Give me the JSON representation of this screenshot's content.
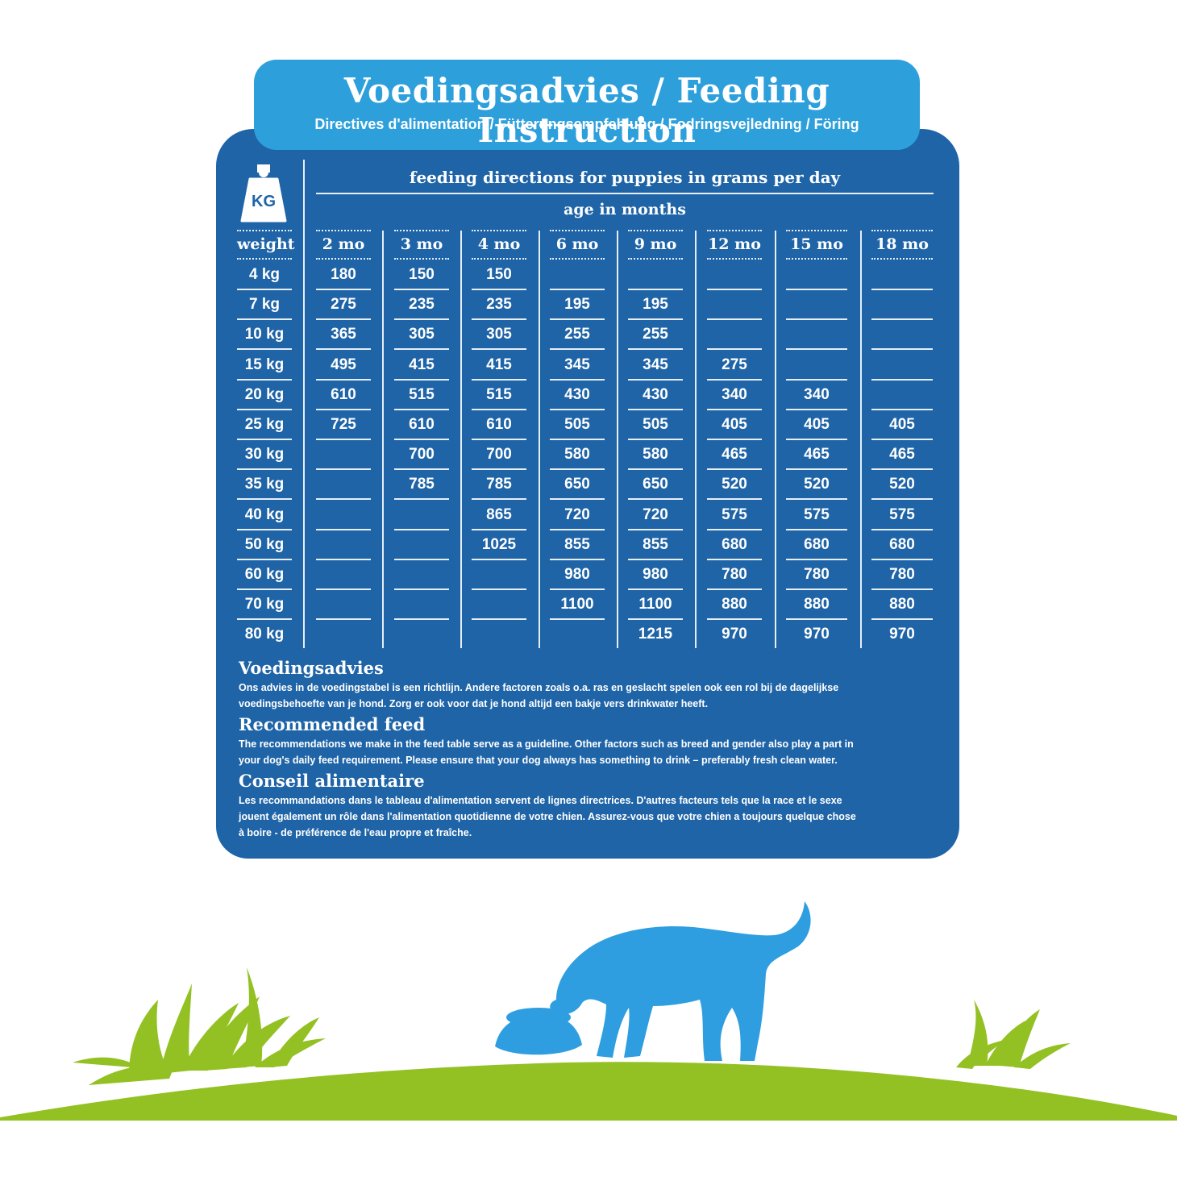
{
  "header": {
    "title": "Voedingsadvies / Feeding Instruction",
    "subtitle": "Directives d'alimentation / Fütterungsempfehlung / Fodringsvejledning / Föring"
  },
  "icon": {
    "name": "weight-kg-icon",
    "label": "KG"
  },
  "table": {
    "caption": "feeding directions for puppies in grams per day",
    "subcaption": "age in months",
    "weight_header": "weight",
    "columns": [
      "2 mo",
      "3 mo",
      "4 mo",
      "6 mo",
      "9 mo",
      "12 mo",
      "15 mo",
      "18 mo"
    ],
    "rows": [
      {
        "weight": "4 kg",
        "values": [
          "180",
          "150",
          "150",
          "",
          "",
          "",
          "",
          ""
        ]
      },
      {
        "weight": "7 kg",
        "values": [
          "275",
          "235",
          "235",
          "195",
          "195",
          "",
          "",
          ""
        ]
      },
      {
        "weight": "10 kg",
        "values": [
          "365",
          "305",
          "305",
          "255",
          "255",
          "",
          "",
          ""
        ]
      },
      {
        "weight": "15 kg",
        "values": [
          "495",
          "415",
          "415",
          "345",
          "345",
          "275",
          "",
          ""
        ]
      },
      {
        "weight": "20 kg",
        "values": [
          "610",
          "515",
          "515",
          "430",
          "430",
          "340",
          "340",
          ""
        ]
      },
      {
        "weight": "25 kg",
        "values": [
          "725",
          "610",
          "610",
          "505",
          "505",
          "405",
          "405",
          "405"
        ]
      },
      {
        "weight": "30 kg",
        "values": [
          "",
          "700",
          "700",
          "580",
          "580",
          "465",
          "465",
          "465"
        ]
      },
      {
        "weight": "35 kg",
        "values": [
          "",
          "785",
          "785",
          "650",
          "650",
          "520",
          "520",
          "520"
        ]
      },
      {
        "weight": "40 kg",
        "values": [
          "",
          "",
          "865",
          "720",
          "720",
          "575",
          "575",
          "575"
        ]
      },
      {
        "weight": "50 kg",
        "values": [
          "",
          "",
          "1025",
          "855",
          "855",
          "680",
          "680",
          "680"
        ]
      },
      {
        "weight": "60 kg",
        "values": [
          "",
          "",
          "",
          "980",
          "980",
          "780",
          "780",
          "780"
        ]
      },
      {
        "weight": "70 kg",
        "values": [
          "",
          "",
          "",
          "1100",
          "1100",
          "880",
          "880",
          "880"
        ]
      },
      {
        "weight": "80 kg",
        "values": [
          "",
          "",
          "",
          "",
          "1215",
          "970",
          "970",
          "970"
        ]
      }
    ]
  },
  "notes": [
    {
      "title": "Voedingsadvies",
      "lines": [
        "Ons advies in de voedingstabel is een richtlijn. Andere factoren zoals o.a. ras en geslacht spelen ook een rol bij de dagelijkse",
        "voedingsbehoefte van je hond. Zorg er ook voor dat je hond altijd een bakje vers drinkwater heeft."
      ]
    },
    {
      "title": "Recommended feed",
      "lines": [
        "The recommendations we make in the feed table serve as a guideline. Other factors such as breed and gender also play a part in",
        "your dog's daily feed requirement. Please ensure that your dog always has something to drink – preferably fresh clean water."
      ]
    },
    {
      "title": "Conseil alimentaire",
      "lines": [
        "Les recommandations dans le tableau d'alimentation servent de lignes directrices. D'autres facteurs tels que la race et le sexe",
        "jouent également un rôle dans l'alimentation quotidienne de votre chien. Assurez-vous que votre chien a toujours quelque chose",
        "à boire - de préférence de l'eau propre et fraîche."
      ]
    }
  ],
  "illustration": {
    "name": "dog-eating-on-grass-illustration"
  },
  "colors": {
    "panel": "#1f64a7",
    "header": "#2da0dc",
    "dog": "#2e9ee0",
    "grass": "#93c123"
  }
}
